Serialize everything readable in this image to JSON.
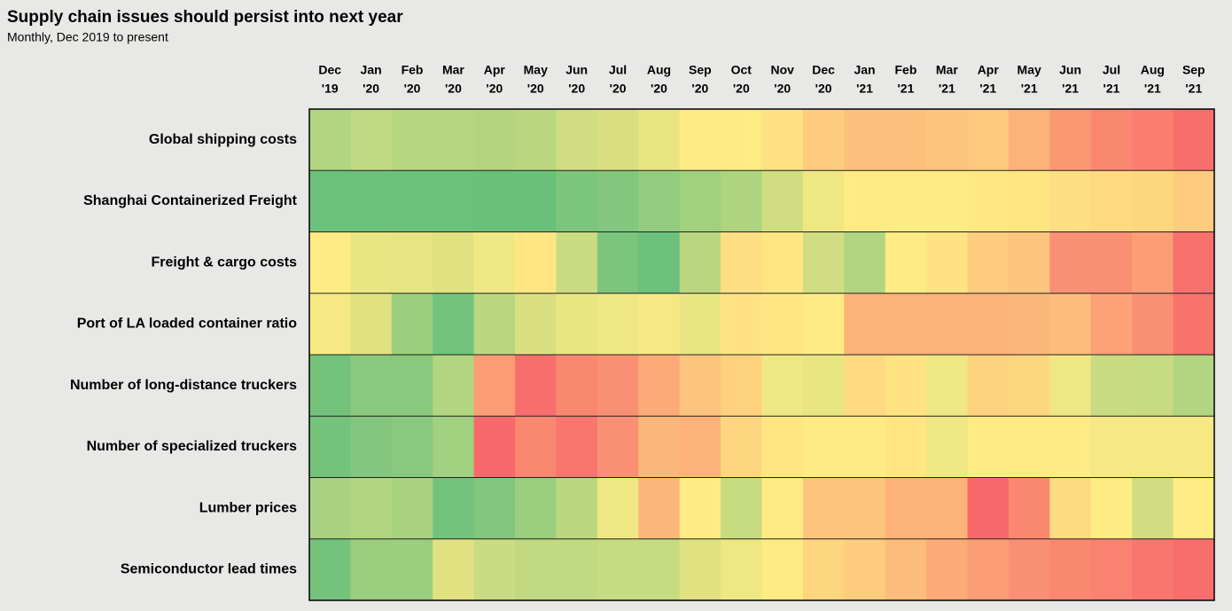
{
  "chart_data": {
    "type": "heatmap",
    "title": "Supply chain issues should persist into next year",
    "subtitle": "Monthly, Dec 2019 to present",
    "categories": [
      [
        "Dec",
        "'19"
      ],
      [
        "Jan",
        "'20"
      ],
      [
        "Feb",
        "'20"
      ],
      [
        "Mar",
        "'20"
      ],
      [
        "Apr",
        "'20"
      ],
      [
        "May",
        "'20"
      ],
      [
        "Jun",
        "'20"
      ],
      [
        "Jul",
        "'20"
      ],
      [
        "Aug",
        "'20"
      ],
      [
        "Sep",
        "'20"
      ],
      [
        "Oct",
        "'20"
      ],
      [
        "Nov",
        "'20"
      ],
      [
        "Dec",
        "'20"
      ],
      [
        "Jan",
        "'21"
      ],
      [
        "Feb",
        "'21"
      ],
      [
        "Mar",
        "'21"
      ],
      [
        "Apr",
        "'21"
      ],
      [
        "May",
        "'21"
      ],
      [
        "Jun",
        "'21"
      ],
      [
        "Jul",
        "'21"
      ],
      [
        "Aug",
        "'21"
      ],
      [
        "Sep",
        "'21"
      ]
    ],
    "zlim": [
      0,
      100
    ],
    "colors": [
      "#63be7b",
      "#ffeb84",
      "#f8696b"
    ],
    "series": [
      {
        "name": "Global shipping costs",
        "values": [
          25,
          30,
          27,
          27,
          26,
          28,
          35,
          38,
          43,
          50,
          50,
          54,
          62,
          67,
          67,
          65,
          63,
          72,
          82,
          88,
          92,
          98
        ]
      },
      {
        "name": "Shanghai Containerized Freight",
        "values": [
          3,
          3,
          3,
          3,
          2,
          2,
          8,
          10,
          15,
          20,
          24,
          35,
          45,
          50,
          50,
          50,
          51,
          52,
          55,
          57,
          58,
          62
        ]
      },
      {
        "name": "Freight & cargo costs",
        "values": [
          50,
          43,
          42,
          40,
          45,
          52,
          33,
          8,
          3,
          28,
          55,
          52,
          35,
          25,
          50,
          53,
          62,
          65,
          85,
          85,
          80,
          97
        ]
      },
      {
        "name": "Port of LA loaded container ratio",
        "values": [
          47,
          40,
          18,
          5,
          28,
          38,
          43,
          45,
          47,
          43,
          53,
          52,
          50,
          72,
          72,
          72,
          72,
          70,
          68,
          78,
          85,
          96
        ]
      },
      {
        "name": "Number of long-distance truckers",
        "values": [
          5,
          12,
          12,
          25,
          80,
          98,
          88,
          85,
          75,
          65,
          60,
          45,
          43,
          57,
          53,
          45,
          60,
          58,
          45,
          33,
          32,
          25
        ]
      },
      {
        "name": "Number of specialized truckers",
        "values": [
          5,
          10,
          12,
          20,
          100,
          88,
          95,
          85,
          70,
          72,
          58,
          52,
          50,
          50,
          52,
          45,
          50,
          50,
          50,
          47,
          47,
          47
        ]
      },
      {
        "name": "Lumber prices",
        "values": [
          22,
          25,
          22,
          5,
          10,
          18,
          28,
          45,
          70,
          50,
          32,
          50,
          65,
          65,
          72,
          72,
          100,
          88,
          56,
          50,
          35,
          50
        ]
      },
      {
        "name": "Semiconductor lead times",
        "values": [
          5,
          18,
          18,
          40,
          33,
          30,
          30,
          32,
          32,
          40,
          45,
          50,
          58,
          62,
          68,
          75,
          80,
          85,
          88,
          90,
          95,
          98
        ]
      }
    ]
  }
}
